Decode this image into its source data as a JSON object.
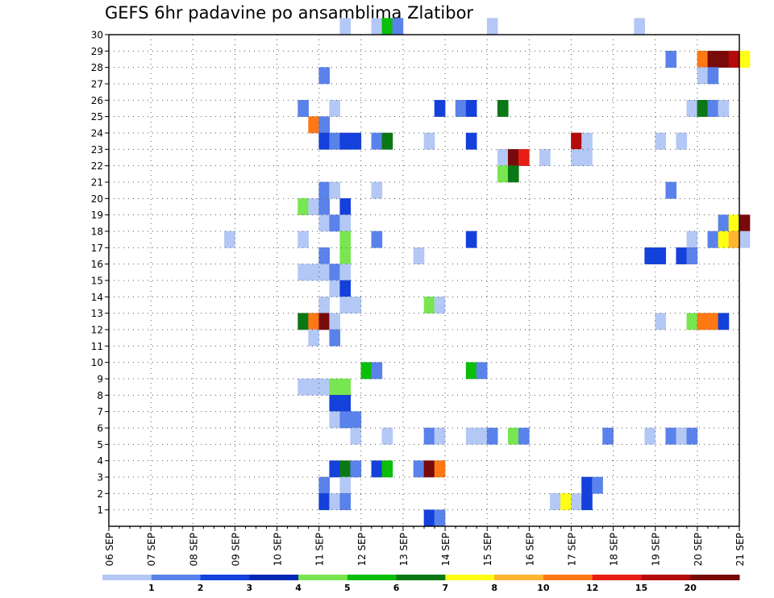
{
  "chart_data": {
    "type": "heatmap",
    "title": "GEFS 6hr padavine po ansamblima Zlatibor",
    "xlabel": "",
    "ylabel": "",
    "x_unit": "6-hour step",
    "x_tick_labels": [
      "06 SEP",
      "07 SEP",
      "08 SEP",
      "09 SEP",
      "10 SEP",
      "11 SEP",
      "12 SEP",
      "13 SEP",
      "14 SEP",
      "15 SEP",
      "16 SEP",
      "17 SEP",
      "18 SEP",
      "19 SEP",
      "20 SEP",
      "21 SEP"
    ],
    "x_range": [
      0,
      60
    ],
    "y_tick_labels": [
      "1",
      "2",
      "3",
      "4",
      "5",
      "6",
      "7",
      "8",
      "9",
      "10",
      "11",
      "12",
      "13",
      "14",
      "15",
      "16",
      "17",
      "18",
      "19",
      "20",
      "21",
      "22",
      "23",
      "24",
      "25",
      "26",
      "27",
      "28",
      "29",
      "30"
    ],
    "y_range": [
      0,
      30
    ],
    "grid": true,
    "legend_placement": "bottom",
    "levels": [
      "1",
      "2",
      "3",
      "4",
      "5",
      "6",
      "7",
      "8",
      "10",
      "12",
      "15",
      "20"
    ],
    "level_colors": [
      "#b4c8f5",
      "#5a82eb",
      "#1440dc",
      "#0028b4",
      "#78e650",
      "#0abe0a",
      "#0a7814",
      "#ffff14",
      "#ffb432",
      "#ff7814",
      "#e61e14",
      "#b40a0a",
      "#780a0a"
    ],
    "cells": [
      [
        30,
        22,
        0
      ],
      [
        30,
        25,
        0
      ],
      [
        30,
        26,
        5
      ],
      [
        30,
        27,
        1
      ],
      [
        30,
        36,
        0
      ],
      [
        30,
        50,
        0
      ],
      [
        28,
        53,
        1
      ],
      [
        28,
        56,
        9
      ],
      [
        28,
        57,
        12
      ],
      [
        28,
        58,
        12
      ],
      [
        28,
        59,
        11
      ],
      [
        28,
        60,
        7
      ],
      [
        27,
        20,
        1
      ],
      [
        27,
        56,
        0
      ],
      [
        27,
        57,
        1
      ],
      [
        25,
        18,
        1
      ],
      [
        25,
        21,
        0
      ],
      [
        25,
        31,
        2
      ],
      [
        25,
        33,
        1
      ],
      [
        25,
        34,
        2
      ],
      [
        25,
        37,
        6
      ],
      [
        25,
        55,
        0
      ],
      [
        25,
        56,
        6
      ],
      [
        25,
        57,
        1
      ],
      [
        25,
        58,
        0
      ],
      [
        24,
        19,
        9
      ],
      [
        24,
        20,
        1
      ],
      [
        23,
        20,
        2
      ],
      [
        23,
        21,
        1
      ],
      [
        23,
        22,
        2
      ],
      [
        23,
        23,
        2
      ],
      [
        23,
        25,
        1
      ],
      [
        23,
        26,
        6
      ],
      [
        23,
        30,
        0
      ],
      [
        23,
        34,
        2
      ],
      [
        23,
        44,
        11
      ],
      [
        23,
        45,
        0
      ],
      [
        23,
        52,
        0
      ],
      [
        23,
        54,
        0
      ],
      [
        22,
        37,
        0
      ],
      [
        22,
        38,
        12
      ],
      [
        22,
        39,
        10
      ],
      [
        22,
        41,
        0
      ],
      [
        22,
        44,
        0
      ],
      [
        22,
        45,
        0
      ],
      [
        21,
        37,
        4
      ],
      [
        21,
        38,
        6
      ],
      [
        20,
        20,
        1
      ],
      [
        20,
        21,
        0
      ],
      [
        20,
        25,
        0
      ],
      [
        20,
        53,
        1
      ],
      [
        19,
        18,
        4
      ],
      [
        19,
        19,
        0
      ],
      [
        19,
        20,
        1
      ],
      [
        19,
        22,
        2
      ],
      [
        18,
        20,
        0
      ],
      [
        18,
        21,
        1
      ],
      [
        18,
        22,
        0
      ],
      [
        18,
        58,
        1
      ],
      [
        18,
        59,
        7
      ],
      [
        18,
        60,
        12
      ],
      [
        17,
        11,
        0
      ],
      [
        17,
        18,
        0
      ],
      [
        17,
        22,
        4
      ],
      [
        17,
        25,
        1
      ],
      [
        17,
        34,
        2
      ],
      [
        17,
        55,
        0
      ],
      [
        17,
        57,
        1
      ],
      [
        17,
        58,
        7
      ],
      [
        17,
        59,
        8
      ],
      [
        17,
        60,
        0
      ],
      [
        16,
        20,
        1
      ],
      [
        16,
        22,
        4
      ],
      [
        16,
        29,
        0
      ],
      [
        16,
        51,
        2
      ],
      [
        16,
        52,
        2
      ],
      [
        16,
        54,
        2
      ],
      [
        16,
        55,
        1
      ],
      [
        15,
        18,
        0
      ],
      [
        15,
        19,
        0
      ],
      [
        15,
        20,
        0
      ],
      [
        15,
        21,
        1
      ],
      [
        15,
        22,
        0
      ],
      [
        14,
        21,
        0
      ],
      [
        14,
        22,
        2
      ],
      [
        13,
        20,
        0
      ],
      [
        13,
        22,
        0
      ],
      [
        13,
        23,
        0
      ],
      [
        13,
        30,
        4
      ],
      [
        13,
        31,
        0
      ],
      [
        12,
        18,
        6
      ],
      [
        12,
        19,
        9
      ],
      [
        12,
        20,
        12
      ],
      [
        12,
        21,
        0
      ],
      [
        12,
        52,
        0
      ],
      [
        12,
        55,
        4
      ],
      [
        12,
        56,
        9
      ],
      [
        12,
        57,
        9
      ],
      [
        12,
        58,
        2
      ],
      [
        11,
        19,
        0
      ],
      [
        11,
        21,
        1
      ],
      [
        9,
        24,
        5
      ],
      [
        9,
        25,
        1
      ],
      [
        9,
        34,
        5
      ],
      [
        9,
        35,
        1
      ],
      [
        8,
        18,
        0
      ],
      [
        8,
        19,
        0
      ],
      [
        8,
        20,
        0
      ],
      [
        8,
        21,
        4
      ],
      [
        8,
        22,
        4
      ],
      [
        7,
        21,
        2
      ],
      [
        7,
        22,
        2
      ],
      [
        6,
        21,
        0
      ],
      [
        6,
        22,
        1
      ],
      [
        6,
        23,
        1
      ],
      [
        5,
        23,
        0
      ],
      [
        5,
        26,
        0
      ],
      [
        5,
        30,
        1
      ],
      [
        5,
        31,
        0
      ],
      [
        5,
        34,
        0
      ],
      [
        5,
        35,
        0
      ],
      [
        5,
        36,
        1
      ],
      [
        5,
        38,
        4
      ],
      [
        5,
        39,
        1
      ],
      [
        5,
        47,
        1
      ],
      [
        5,
        51,
        0
      ],
      [
        5,
        53,
        1
      ],
      [
        5,
        54,
        0
      ],
      [
        5,
        55,
        1
      ],
      [
        3,
        21,
        2
      ],
      [
        3,
        22,
        6
      ],
      [
        3,
        23,
        1
      ],
      [
        3,
        25,
        2
      ],
      [
        3,
        26,
        5
      ],
      [
        3,
        29,
        1
      ],
      [
        3,
        30,
        12
      ],
      [
        3,
        31,
        9
      ],
      [
        2,
        20,
        1
      ],
      [
        2,
        22,
        0
      ],
      [
        2,
        45,
        2
      ],
      [
        2,
        46,
        1
      ],
      [
        1,
        20,
        2
      ],
      [
        1,
        21,
        0
      ],
      [
        1,
        22,
        1
      ],
      [
        1,
        42,
        0
      ],
      [
        1,
        43,
        7
      ],
      [
        1,
        44,
        0
      ],
      [
        1,
        45,
        2
      ],
      [
        0,
        30,
        2
      ],
      [
        0,
        31,
        1
      ]
    ]
  }
}
